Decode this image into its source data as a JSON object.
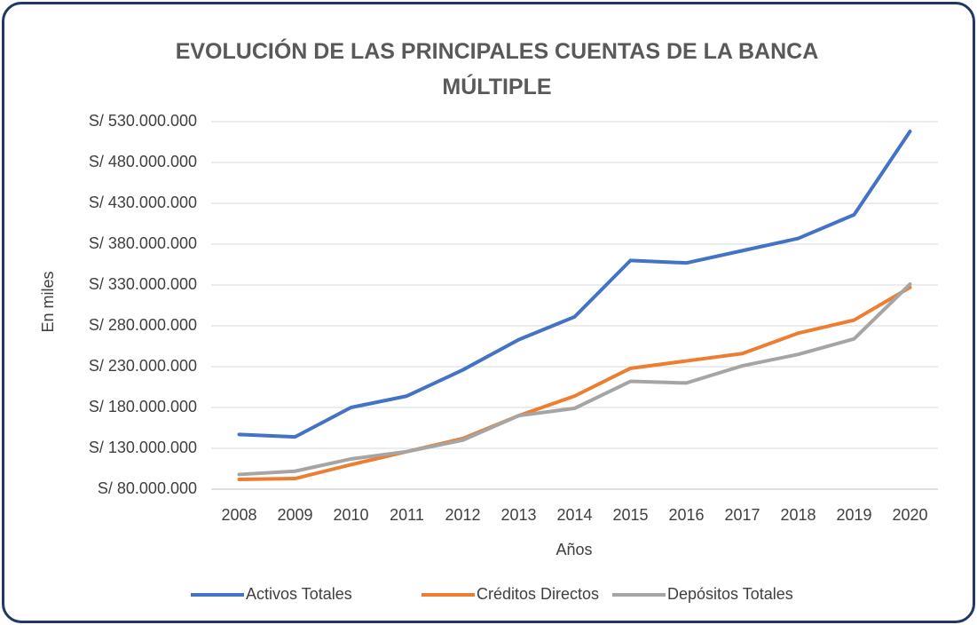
{
  "chart_data": {
    "type": "line",
    "title": "EVOLUCIÓN DE LAS PRINCIPALES CUENTAS DE LA BANCA MÚLTIPLE",
    "x_label": "Años",
    "y_label": "En miles",
    "categories": [
      "2008",
      "2009",
      "2010",
      "2011",
      "2012",
      "2013",
      "2014",
      "2015",
      "2016",
      "2017",
      "2018",
      "2019",
      "2020"
    ],
    "series": [
      {
        "name": "Activos Totales",
        "color": "#4472c4",
        "values": [
          147000000,
          144000000,
          180000000,
          194000000,
          226000000,
          263000000,
          291000000,
          360000000,
          357000000,
          372000000,
          387000000,
          416000000,
          518000000
        ]
      },
      {
        "name": "Créditos Directos",
        "color": "#ed7d31",
        "values": [
          92000000,
          93000000,
          110000000,
          126000000,
          142000000,
          170000000,
          194000000,
          228000000,
          237000000,
          246000000,
          271000000,
          287000000,
          327000000
        ]
      },
      {
        "name": "Depósitos Totales",
        "color": "#a5a5a5",
        "values": [
          98000000,
          102000000,
          117000000,
          126000000,
          140000000,
          170000000,
          179000000,
          212000000,
          210000000,
          231000000,
          245000000,
          264000000,
          331000000
        ]
      }
    ],
    "ylim": [
      80000000,
      530000000
    ],
    "yticks": [
      {
        "value": 80000000,
        "label": "S/ 80.000.000"
      },
      {
        "value": 130000000,
        "label": "S/ 130.000.000"
      },
      {
        "value": 180000000,
        "label": "S/ 180.000.000"
      },
      {
        "value": 230000000,
        "label": "S/ 230.000.000"
      },
      {
        "value": 280000000,
        "label": "S/ 280.000.000"
      },
      {
        "value": 330000000,
        "label": "S/ 330.000.000"
      },
      {
        "value": 380000000,
        "label": "S/ 380.000.000"
      },
      {
        "value": 430000000,
        "label": "S/ 430.000.000"
      },
      {
        "value": 480000000,
        "label": "S/ 480.000.000"
      },
      {
        "value": 530000000,
        "label": "S/ 530.000.000"
      }
    ],
    "grid": true,
    "legend": "bottom"
  }
}
